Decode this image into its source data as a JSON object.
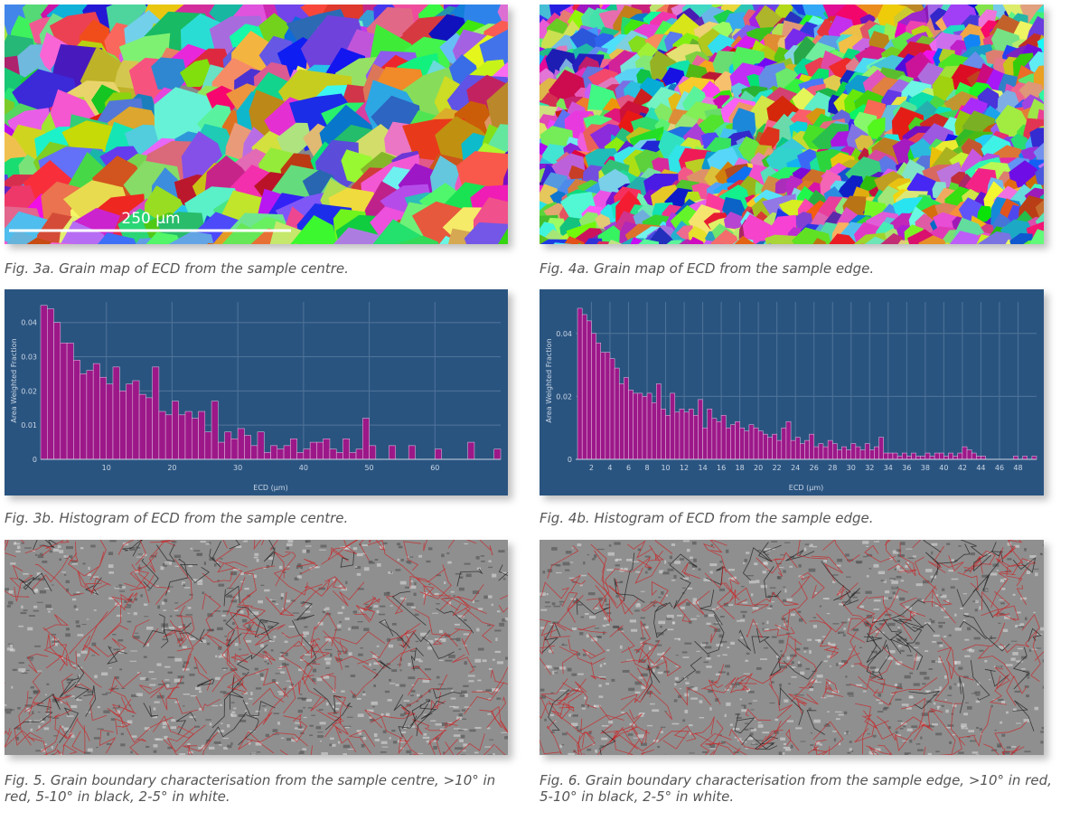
{
  "captions": [
    "Fig. 3a. Grain map of ECD from the sample centre.",
    "Fig. 4a. Grain map of ECD from the sample edge.",
    "Fig. 3b. Histogram of ECD from the sample centre.",
    "Fig. 4b. Histogram of ECD from the sample edge.",
    "Fig. 5. Grain boundary characterisation from the sample centre, >10° in red, 5-10° in black, 2-5° in white.",
    "Fig. 6. Grain boundary characterisation from the sample edge, >10° in red, 5-10° in black, 2-5° in white."
  ],
  "scale_bar": "250 µm",
  "chart_data": [
    {
      "type": "histogram",
      "x_label": "ECD (µm)",
      "y_label": "Area Weighted Fraction",
      "color": "#9c1889",
      "grid": true,
      "bins": [
        0,
        1,
        2,
        3,
        4,
        5,
        6,
        7,
        8,
        9,
        10,
        11,
        12,
        13,
        14,
        15,
        16,
        17,
        18,
        19,
        20,
        21,
        22,
        23,
        24,
        25,
        26,
        27,
        28,
        29,
        30,
        31,
        32,
        33,
        34,
        35,
        36,
        37,
        38,
        39,
        40,
        41,
        42,
        43,
        44,
        45,
        46,
        47,
        48,
        49,
        50,
        51,
        52,
        53,
        54,
        55,
        56,
        57,
        58,
        59,
        60,
        61,
        62,
        63,
        64,
        65,
        66,
        67,
        68,
        69,
        70
      ],
      "values": [
        0.045,
        0.044,
        0.04,
        0.034,
        0.034,
        0.029,
        0.025,
        0.026,
        0.028,
        0.024,
        0.022,
        0.027,
        0.02,
        0.022,
        0.023,
        0.019,
        0.018,
        0.027,
        0.014,
        0.013,
        0.017,
        0.013,
        0.014,
        0.012,
        0.014,
        0.008,
        0.017,
        0.005,
        0.008,
        0.006,
        0.009,
        0.007,
        0.004,
        0.008,
        0.002,
        0.004,
        0.003,
        0.004,
        0.006,
        0.002,
        0.003,
        0.005,
        0.005,
        0.006,
        0.003,
        0.002,
        0.006,
        0.002,
        0.003,
        0.012,
        0.004,
        0,
        0,
        0.004,
        0,
        0,
        0.004,
        0,
        0,
        0,
        0.003,
        0,
        0,
        0,
        0,
        0.005,
        0,
        0,
        0,
        0.003
      ],
      "xlim": [
        0,
        70
      ],
      "xticks": [
        10,
        20,
        30,
        40,
        50,
        60
      ],
      "ylim": [
        0,
        0.046
      ],
      "yticks": [
        0,
        0.01,
        0.02,
        0.03,
        0.04
      ]
    },
    {
      "type": "histogram",
      "x_label": "ECD (µm)",
      "y_label": "Area Weighted Fraction",
      "color": "#9c1889",
      "grid": true,
      "bins": [
        0.5,
        1,
        1.5,
        2,
        2.5,
        3,
        3.5,
        4,
        4.5,
        5,
        5.5,
        6,
        6.5,
        7,
        7.5,
        8,
        8.5,
        9,
        9.5,
        10,
        10.5,
        11,
        11.5,
        12,
        12.5,
        13,
        13.5,
        14,
        14.5,
        15,
        15.5,
        16,
        16.5,
        17,
        17.5,
        18,
        18.5,
        19,
        19.5,
        20,
        20.5,
        21,
        21.5,
        22,
        22.5,
        23,
        23.5,
        24,
        24.5,
        25,
        25.5,
        26,
        26.5,
        27,
        27.5,
        28,
        28.5,
        29,
        29.5,
        30,
        30.5,
        31,
        31.5,
        32,
        32.5,
        33,
        33.5,
        34,
        34.5,
        35,
        35.5,
        36,
        36.5,
        37,
        37.5,
        38,
        38.5,
        39,
        39.5,
        40,
        40.5,
        41,
        41.5,
        42,
        42.5,
        43,
        43.5,
        44,
        44.5,
        45,
        45.5,
        46,
        46.5,
        47,
        47.5,
        48,
        48.5,
        49,
        49.5,
        50
      ],
      "values": [
        0.048,
        0.046,
        0.044,
        0.04,
        0.037,
        0.034,
        0.034,
        0.032,
        0.029,
        0.024,
        0.026,
        0.022,
        0.021,
        0.021,
        0.02,
        0.021,
        0.018,
        0.024,
        0.016,
        0.014,
        0.021,
        0.015,
        0.016,
        0.015,
        0.016,
        0.014,
        0.019,
        0.01,
        0.016,
        0.013,
        0.012,
        0.014,
        0.01,
        0.011,
        0.012,
        0.01,
        0.009,
        0.011,
        0.01,
        0.009,
        0.008,
        0.007,
        0.008,
        0.006,
        0.01,
        0.012,
        0.006,
        0.007,
        0.005,
        0.006,
        0.008,
        0.004,
        0.005,
        0.004,
        0.006,
        0.005,
        0.003,
        0.004,
        0.003,
        0.005,
        0.004,
        0.003,
        0.005,
        0.003,
        0.004,
        0.007,
        0.002,
        0.002,
        0.002,
        0.001,
        0.002,
        0.001,
        0.002,
        0.001,
        0.001,
        0.002,
        0.001,
        0.002,
        0.002,
        0.001,
        0.002,
        0.001,
        0.002,
        0.004,
        0.003,
        0.002,
        0.001,
        0.001,
        0,
        0,
        0,
        0,
        0,
        0,
        0.001,
        0,
        0.001,
        0,
        0.001
      ],
      "xlim": [
        0.3,
        50
      ],
      "xticks": [
        2,
        4,
        6,
        8,
        10,
        12,
        14,
        16,
        18,
        20,
        22,
        24,
        26,
        28,
        30,
        32,
        34,
        36,
        38,
        40,
        42,
        44,
        46,
        48
      ],
      "ylim": [
        0,
        0.05
      ],
      "yticks": [
        0,
        0.02,
        0.04
      ]
    }
  ]
}
